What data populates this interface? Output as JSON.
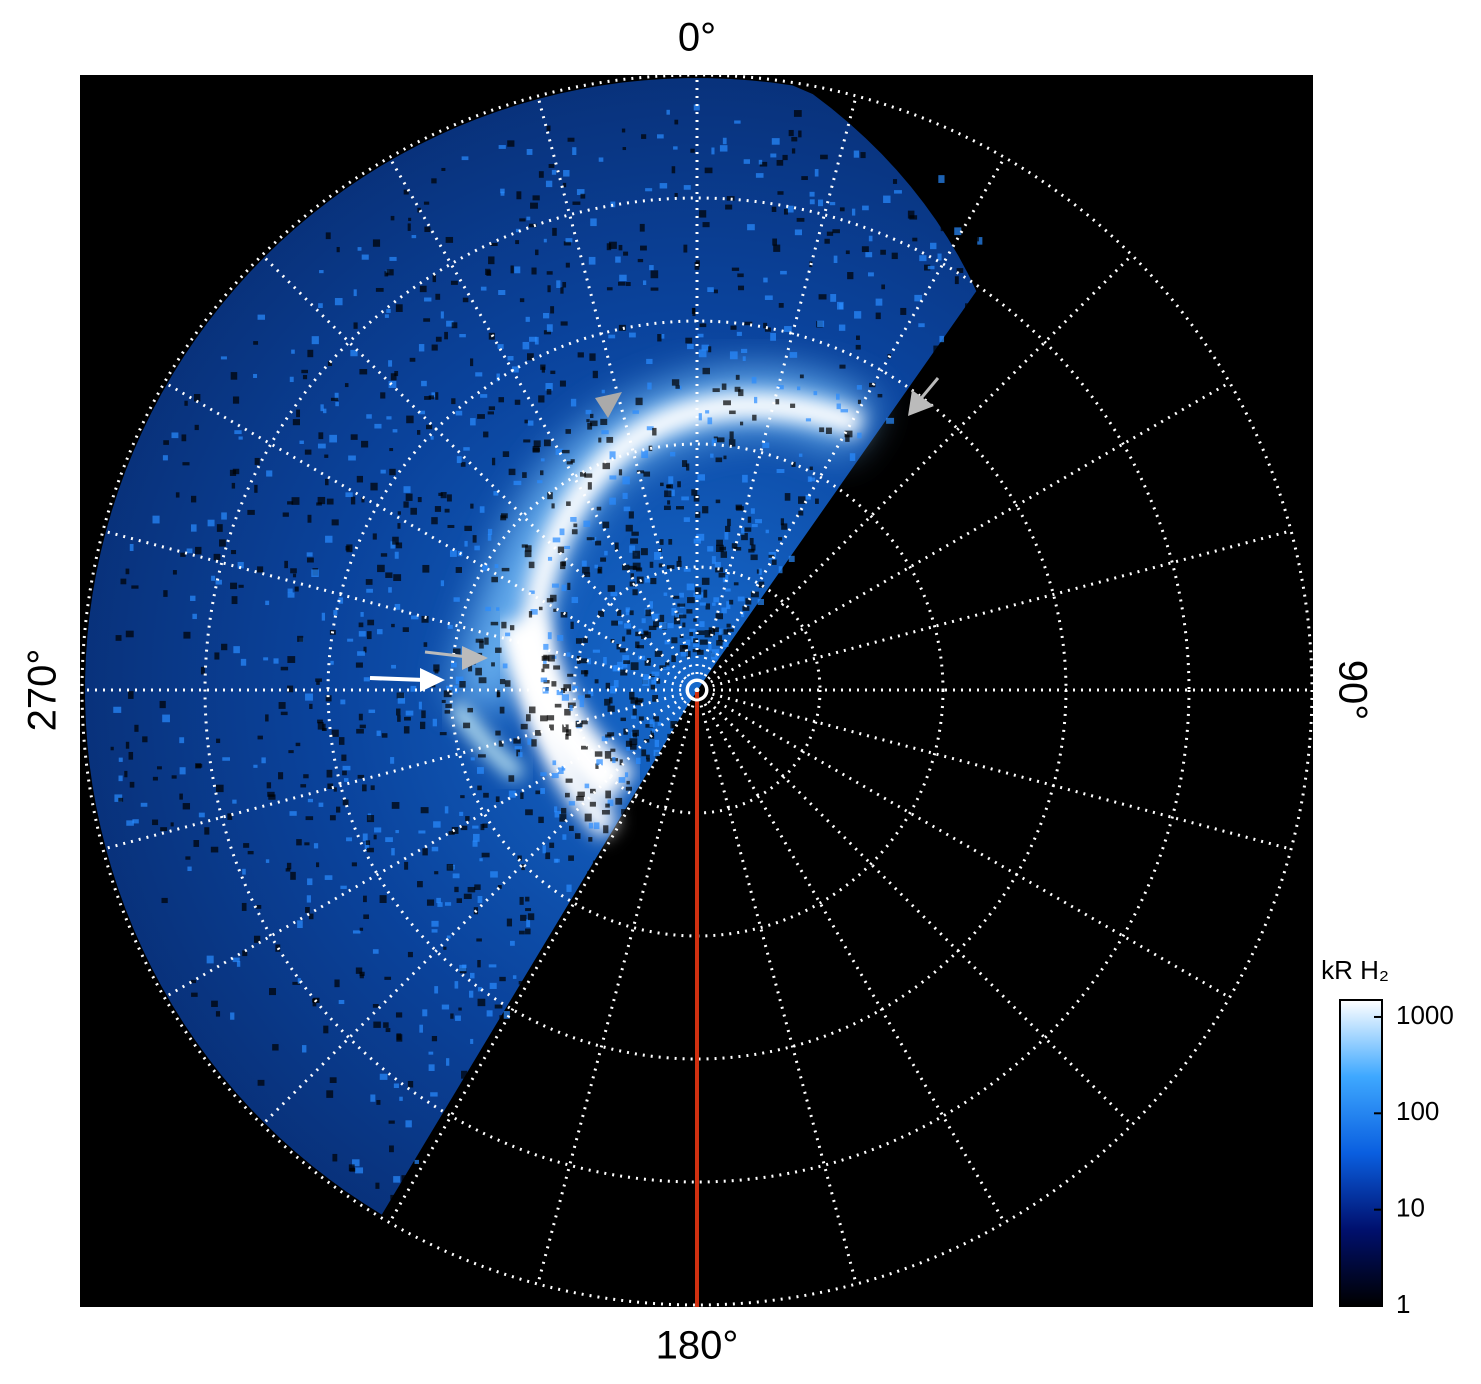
{
  "chart_data": {
    "type": "polar_map",
    "angle_labels": {
      "top": "0°",
      "right": "90°",
      "bottom": "180°",
      "left": "270°"
    },
    "colorbar": {
      "title": "kR H₂",
      "lim": [
        1,
        1500
      ],
      "ticks": [
        1,
        10,
        100,
        1000
      ],
      "log": true,
      "colors": [
        "#000000",
        "#00106e",
        "#0a5fe0",
        "#3ea8ff",
        "#ffffff"
      ]
    }
  }
}
